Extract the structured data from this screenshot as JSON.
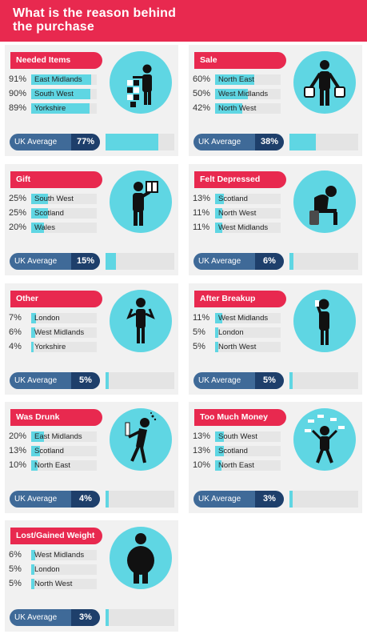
{
  "header": {
    "title_line1": "What is the reason behind",
    "title_line2": "the purchase"
  },
  "colors": {
    "accent": "#e8294f",
    "bar": "#5fd6e3",
    "avg_bg": "#3f6a98",
    "avg_value_bg": "#1e3f6b"
  },
  "panels": [
    {
      "category": "Needed Items",
      "icon": "person-stacking-boxes-icon",
      "rows": [
        {
          "pct": "91%",
          "region": "East Midlands",
          "value": 91
        },
        {
          "pct": "90%",
          "region": "South West",
          "value": 90
        },
        {
          "pct": "89%",
          "region": "Yorkshire",
          "value": 89
        }
      ],
      "avg_label": "UK Average",
      "avg_value": "77%",
      "avg": 77
    },
    {
      "category": "Sale",
      "icon": "person-with-shopping-bags-icon",
      "rows": [
        {
          "pct": "60%",
          "region": "North East",
          "value": 60
        },
        {
          "pct": "50%",
          "region": "West Midlands",
          "value": 50
        },
        {
          "pct": "42%",
          "region": "North West",
          "value": 42
        }
      ],
      "avg_label": "UK Average",
      "avg_value": "38%",
      "avg": 38
    },
    {
      "category": "Gift",
      "icon": "person-holding-gift-icon",
      "rows": [
        {
          "pct": "25%",
          "region": "South West",
          "value": 25
        },
        {
          "pct": "25%",
          "region": "Scotland",
          "value": 25
        },
        {
          "pct": "20%",
          "region": "Wales",
          "value": 20
        }
      ],
      "avg_label": "UK Average",
      "avg_value": "15%",
      "avg": 15
    },
    {
      "category": "Felt Depressed",
      "icon": "sad-person-sitting-icon",
      "rows": [
        {
          "pct": "13%",
          "region": "Scotland",
          "value": 13
        },
        {
          "pct": "11%",
          "region": "North West",
          "value": 11
        },
        {
          "pct": "11%",
          "region": "West Midlands",
          "value": 11
        }
      ],
      "avg_label": "UK Average",
      "avg_value": "6%",
      "avg": 6
    },
    {
      "category": "Other",
      "icon": "person-shrugging-icon",
      "rows": [
        {
          "pct": "7%",
          "region": "London",
          "value": 7
        },
        {
          "pct": "6%",
          "region": "West Midlands",
          "value": 6
        },
        {
          "pct": "4%",
          "region": "Yorkshire",
          "value": 4
        }
      ],
      "avg_label": "UK Average",
      "avg_value": "5%",
      "avg": 5
    },
    {
      "category": "After Breakup",
      "icon": "person-on-phone-icon",
      "rows": [
        {
          "pct": "11%",
          "region": "West Midlands",
          "value": 11
        },
        {
          "pct": "5%",
          "region": "London",
          "value": 5
        },
        {
          "pct": "5%",
          "region": "North West",
          "value": 5
        }
      ],
      "avg_label": "UK Average",
      "avg_value": "5%",
      "avg": 5
    },
    {
      "category": "Was Drunk",
      "icon": "drunk-person-with-bottle-icon",
      "rows": [
        {
          "pct": "20%",
          "region": "East Midlands",
          "value": 20
        },
        {
          "pct": "13%",
          "region": "Scotland",
          "value": 13
        },
        {
          "pct": "10%",
          "region": "North East",
          "value": 10
        }
      ],
      "avg_label": "UK Average",
      "avg_value": "4%",
      "avg": 4
    },
    {
      "category": "Too Much Money",
      "icon": "person-throwing-money-icon",
      "rows": [
        {
          "pct": "13%",
          "region": "South West",
          "value": 13
        },
        {
          "pct": "13%",
          "region": "Scotland",
          "value": 13
        },
        {
          "pct": "10%",
          "region": "North East",
          "value": 10
        }
      ],
      "avg_label": "UK Average",
      "avg_value": "3%",
      "avg": 3
    },
    {
      "category": "Lost/Gained Weight",
      "icon": "person-weight-icon",
      "rows": [
        {
          "pct": "6%",
          "region": "West Midlands",
          "value": 6
        },
        {
          "pct": "5%",
          "region": "London",
          "value": 5
        },
        {
          "pct": "5%",
          "region": "North West",
          "value": 5
        }
      ],
      "avg_label": "UK Average",
      "avg_value": "3%",
      "avg": 3
    }
  ]
}
